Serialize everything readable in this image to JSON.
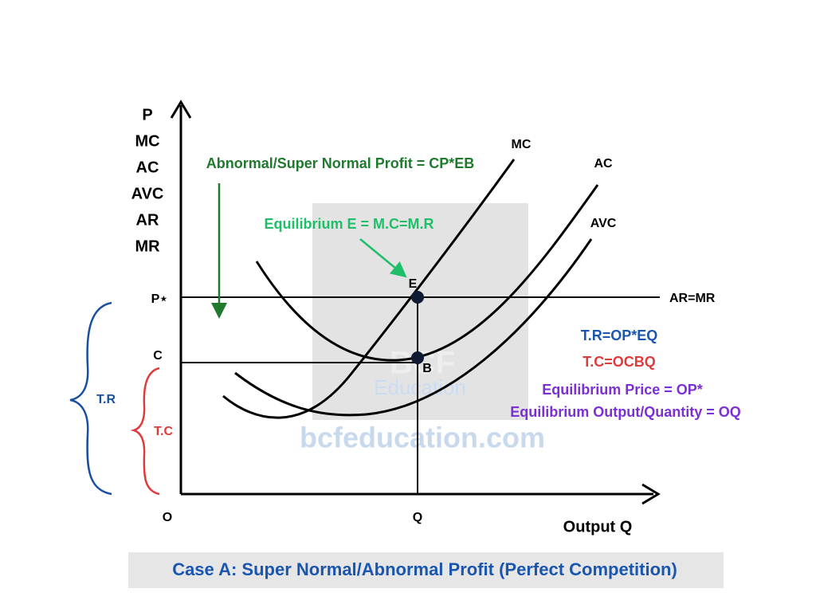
{
  "axis_labels": {
    "y": [
      "P",
      "MC",
      "AC",
      "AVC",
      "AR",
      "MR"
    ],
    "x": "Output Q",
    "origin": "O",
    "q": "Q",
    "p_star": "P⋆",
    "c": "C"
  },
  "curves": {
    "mc": "MC",
    "ac": "AC",
    "avc": "AVC",
    "ar_mr": "AR=MR"
  },
  "points": {
    "e": "E",
    "b": "B"
  },
  "annotations": {
    "profit": "Abnormal/Super Normal Profit = CP*EB",
    "equilibrium": "Equilibrium E = M.C=M.R"
  },
  "braces": {
    "tr": "T.R",
    "tc": "T.C"
  },
  "formulas": [
    "T.R=OP*EQ",
    "T.C=OCBQ",
    "Equilibrium Price = OP*",
    "Equilibrium Output/Quantity = OQ"
  ],
  "watermark": {
    "brand": "BCF",
    "sub": "Education",
    "site": "bcfeducation.com"
  },
  "caption": "Case A: Super Normal/Abnormal Profit (Perfect Competition)"
}
